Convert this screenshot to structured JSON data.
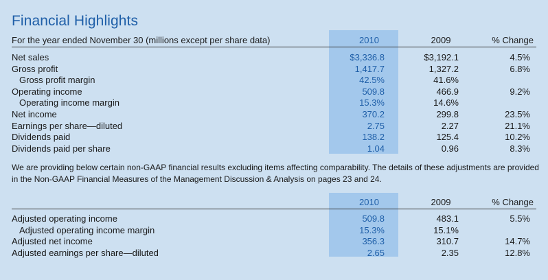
{
  "title": "Financial Highlights",
  "table1": {
    "header": {
      "label": "For the year ended November 30 (millions except per share data)",
      "col2010": "2010",
      "col2009": "2009",
      "colChange": "% Change"
    },
    "rows": [
      {
        "label": "Net sales",
        "y2010": "$3,336.8",
        "y2009": "$3,192.1",
        "change": "4.5%",
        "indent": false
      },
      {
        "label": "Gross profit",
        "y2010": "1,417.7",
        "y2009": "1,327.2",
        "change": "6.8%",
        "indent": false
      },
      {
        "label": "Gross profit margin",
        "y2010": "42.5%",
        "y2009": "41.6%",
        "change": "",
        "indent": true
      },
      {
        "label": "Operating income",
        "y2010": "509.8",
        "y2009": "466.9",
        "change": "9.2%",
        "indent": false
      },
      {
        "label": "Operating income margin",
        "y2010": "15.3%",
        "y2009": "14.6%",
        "change": "",
        "indent": true
      },
      {
        "label": "Net income",
        "y2010": "370.2",
        "y2009": "299.8",
        "change": "23.5%",
        "indent": false
      },
      {
        "label": "Earnings per share—diluted",
        "y2010": "2.75",
        "y2009": "2.27",
        "change": "21.1%",
        "indent": false
      },
      {
        "label": "Dividends paid",
        "y2010": "138.2",
        "y2009": "125.4",
        "change": "10.2%",
        "indent": false
      },
      {
        "label": "Dividends paid per share",
        "y2010": "1.04",
        "y2009": "0.96",
        "change": "8.3%",
        "indent": false
      }
    ]
  },
  "note": "We are providing below certain non-GAAP financial results excluding items affecting comparability. The details of these adjustments are provided in the Non-GAAP Financial Measures of the Management Discussion & Analysis on pages 23 and 24.",
  "table2": {
    "header": {
      "label": "",
      "col2010": "2010",
      "col2009": "2009",
      "colChange": "% Change"
    },
    "rows": [
      {
        "label": "Adjusted operating income",
        "y2010": "509.8",
        "y2009": "483.1",
        "change": "5.5%",
        "indent": false
      },
      {
        "label": "Adjusted operating income margin",
        "y2010": "15.3%",
        "y2009": "15.1%",
        "change": "",
        "indent": true
      },
      {
        "label": "Adjusted net income",
        "y2010": "356.3",
        "y2009": "310.7",
        "change": "14.7%",
        "indent": false
      },
      {
        "label": "Adjusted earnings per share—diluted",
        "y2010": "2.65",
        "y2009": "2.35",
        "change": "12.8%",
        "indent": false
      }
    ]
  },
  "colors": {
    "background": "#cde0f1",
    "highlight": "#a3c8ec",
    "accent": "#1f5fa8"
  }
}
